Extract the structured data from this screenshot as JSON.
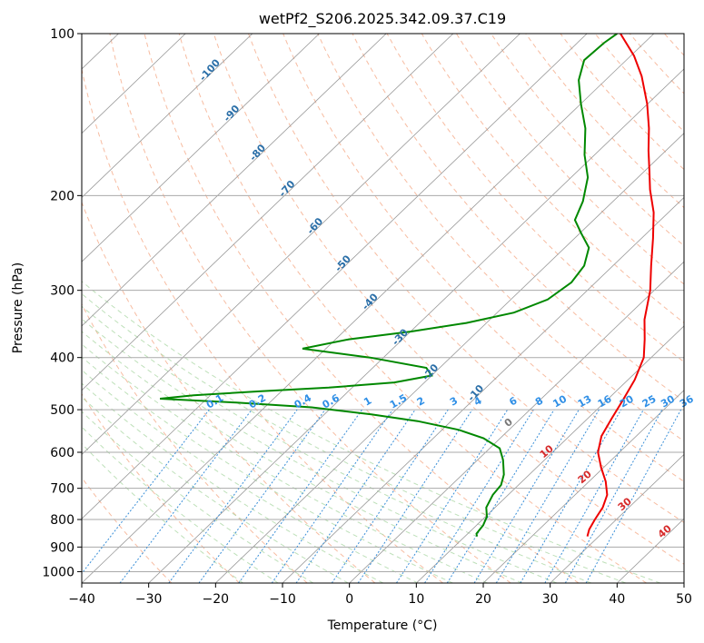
{
  "chart_data": {
    "type": "line",
    "subtype": "skew-t log-p diagram",
    "title": "wetPf2_S206.2025.342.09.37.C19",
    "xlabel": "Temperature (°C)",
    "ylabel": "Pressure (hPa)",
    "xlim": [
      -40,
      50
    ],
    "ylim": [
      1050,
      100
    ],
    "y_scale": "log",
    "grid": true,
    "x_ticks": [
      -40,
      -30,
      -20,
      -10,
      0,
      10,
      20,
      30,
      40,
      50
    ],
    "y_ticks": [
      100,
      200,
      300,
      400,
      500,
      600,
      700,
      800,
      900,
      1000
    ],
    "series": [
      {
        "color": "#ee0000",
        "points": [
          {
            "p": 860,
            "t": 28.3
          },
          {
            "p": 835,
            "t": 27.5
          },
          {
            "p": 800,
            "t": 26.8
          },
          {
            "p": 760,
            "t": 26.1
          },
          {
            "p": 720,
            "t": 24.8
          },
          {
            "p": 680,
            "t": 22.5
          },
          {
            "p": 640,
            "t": 19.6
          },
          {
            "p": 600,
            "t": 16.8
          },
          {
            "p": 560,
            "t": 14.8
          },
          {
            "p": 520,
            "t": 13.6
          },
          {
            "p": 480,
            "t": 12.4
          },
          {
            "p": 440,
            "t": 11.0
          },
          {
            "p": 400,
            "t": 8.9
          },
          {
            "p": 370,
            "t": 6.2
          },
          {
            "p": 340,
            "t": 3.1
          },
          {
            "p": 300,
            "t": -0.6
          },
          {
            "p": 270,
            "t": -4.3
          },
          {
            "p": 240,
            "t": -8.3
          },
          {
            "p": 215,
            "t": -12.2
          },
          {
            "p": 195,
            "t": -16.3
          },
          {
            "p": 180,
            "t": -19.3
          },
          {
            "p": 165,
            "t": -22.6
          },
          {
            "p": 150,
            "t": -26.0
          },
          {
            "p": 135,
            "t": -30.1
          },
          {
            "p": 120,
            "t": -35.2
          },
          {
            "p": 110,
            "t": -39.5
          },
          {
            "p": 100,
            "t": -45.0
          }
        ]
      },
      {
        "color": "#008800",
        "points": [
          {
            "p": 860,
            "t": 11.8
          },
          {
            "p": 850,
            "t": 11.3
          },
          {
            "p": 820,
            "t": 11.0
          },
          {
            "p": 790,
            "t": 10.2
          },
          {
            "p": 760,
            "t": 8.7
          },
          {
            "p": 720,
            "t": 7.7
          },
          {
            "p": 690,
            "t": 7.4
          },
          {
            "p": 660,
            "t": 6.2
          },
          {
            "p": 620,
            "t": 3.8
          },
          {
            "p": 590,
            "t": 1.5
          },
          {
            "p": 565,
            "t": -2.5
          },
          {
            "p": 545,
            "t": -7.5
          },
          {
            "p": 525,
            "t": -15.0
          },
          {
            "p": 510,
            "t": -23.0
          },
          {
            "p": 495,
            "t": -33.0
          },
          {
            "p": 485,
            "t": -45.0
          },
          {
            "p": 477,
            "t": -57.0
          },
          {
            "p": 470,
            "t": -52.5
          },
          {
            "p": 462,
            "t": -43.0
          },
          {
            "p": 455,
            "t": -33.5
          },
          {
            "p": 445,
            "t": -24.5
          },
          {
            "p": 432,
            "t": -20.0
          },
          {
            "p": 418,
            "t": -22.0
          },
          {
            "p": 400,
            "t": -32.0
          },
          {
            "p": 385,
            "t": -43.5
          },
          {
            "p": 370,
            "t": -38.0
          },
          {
            "p": 358,
            "t": -30.0
          },
          {
            "p": 345,
            "t": -23.0
          },
          {
            "p": 330,
            "t": -17.5
          },
          {
            "p": 312,
            "t": -14.5
          },
          {
            "p": 290,
            "t": -13.6
          },
          {
            "p": 270,
            "t": -14.3
          },
          {
            "p": 250,
            "t": -16.4
          },
          {
            "p": 235,
            "t": -19.8
          },
          {
            "p": 222,
            "t": -22.8
          },
          {
            "p": 205,
            "t": -24.5
          },
          {
            "p": 185,
            "t": -27.5
          },
          {
            "p": 168,
            "t": -31.5
          },
          {
            "p": 150,
            "t": -35.5
          },
          {
            "p": 135,
            "t": -40.0
          },
          {
            "p": 122,
            "t": -44.0
          },
          {
            "p": 112,
            "t": -46.3
          },
          {
            "p": 104,
            "t": -46.0
          },
          {
            "p": 100,
            "t": -45.5
          }
        ]
      }
    ],
    "isotherm_labels": [
      "-100",
      "-90",
      "-80",
      "-70",
      "-60",
      "-50",
      "-40",
      "-30",
      "-20",
      "-10"
    ],
    "mixing_ratio_labels": [
      "0.1",
      "0.2",
      "0.4",
      "0.6",
      "1",
      "1.5",
      "2",
      "3",
      "4",
      "6",
      "8",
      "10",
      "13",
      "16",
      "20",
      "25",
      "30",
      "36"
    ],
    "potential_temperature_labels": [
      "10",
      "20",
      "30",
      "40"
    ],
    "zero_label": "0"
  }
}
